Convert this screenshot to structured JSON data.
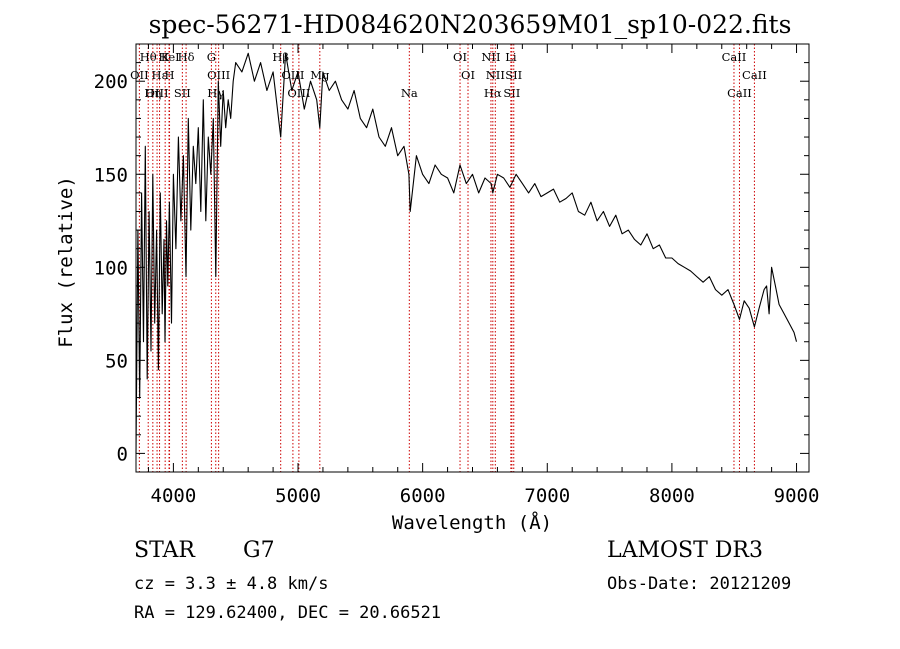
{
  "chart_data": {
    "type": "line",
    "title": "spec-56271-HD084620N203659M01_sp10-022.fits",
    "xlabel": "Wavelength (Å)",
    "ylabel": "Flux (relative)",
    "xlim": [
      3700,
      9100
    ],
    "ylim": [
      -10,
      220
    ],
    "xticks": [
      4000,
      5000,
      6000,
      7000,
      8000,
      9000
    ],
    "xtick_labels": [
      "4000",
      "5000",
      "6000",
      "7000",
      "8000",
      "9000"
    ],
    "yticks": [
      0,
      50,
      100,
      150,
      200
    ],
    "ytick_labels": [
      "0",
      "50",
      "100",
      "150",
      "200"
    ],
    "line_color": "#000000",
    "marker_color": "#cc0000",
    "series": [
      {
        "name": "flux",
        "x": [
          3700,
          3715,
          3730,
          3745,
          3760,
          3775,
          3790,
          3805,
          3820,
          3835,
          3850,
          3865,
          3880,
          3895,
          3910,
          3925,
          3933,
          3945,
          3955,
          3968,
          3985,
          4000,
          4020,
          4040,
          4060,
          4080,
          4101,
          4120,
          4140,
          4160,
          4180,
          4200,
          4220,
          4240,
          4260,
          4280,
          4300,
          4320,
          4340,
          4360,
          4380,
          4400,
          4420,
          4440,
          4460,
          4480,
          4500,
          4550,
          4600,
          4650,
          4700,
          4750,
          4800,
          4861,
          4900,
          4950,
          5000,
          5050,
          5100,
          5150,
          5175,
          5200,
          5250,
          5300,
          5350,
          5400,
          5450,
          5500,
          5550,
          5600,
          5650,
          5700,
          5750,
          5800,
          5850,
          5890,
          5900,
          5950,
          6000,
          6050,
          6100,
          6150,
          6200,
          6250,
          6300,
          6350,
          6400,
          6450,
          6500,
          6550,
          6563,
          6600,
          6650,
          6700,
          6750,
          6800,
          6850,
          6900,
          6950,
          7000,
          7050,
          7100,
          7150,
          7200,
          7250,
          7300,
          7350,
          7400,
          7450,
          7500,
          7550,
          7600,
          7650,
          7700,
          7750,
          7800,
          7850,
          7900,
          7950,
          8000,
          8050,
          8100,
          8150,
          8200,
          8250,
          8300,
          8350,
          8400,
          8450,
          8498,
          8542,
          8580,
          8620,
          8662,
          8700,
          8740,
          8760,
          8780,
          8800,
          8830,
          8860,
          8900,
          8940,
          8980,
          9000
        ],
        "y": [
          0,
          120,
          30,
          140,
          60,
          165,
          40,
          130,
          55,
          150,
          70,
          120,
          45,
          140,
          75,
          115,
          60,
          125,
          90,
          135,
          70,
          150,
          110,
          170,
          125,
          160,
          95,
          180,
          120,
          165,
          145,
          175,
          130,
          190,
          125,
          170,
          150,
          180,
          95,
          200,
          165,
          195,
          175,
          190,
          180,
          200,
          210,
          205,
          215,
          200,
          210,
          195,
          205,
          170,
          215,
          195,
          205,
          185,
          200,
          190,
          175,
          205,
          195,
          200,
          190,
          185,
          195,
          180,
          175,
          185,
          170,
          165,
          175,
          160,
          165,
          150,
          130,
          160,
          150,
          145,
          155,
          150,
          148,
          140,
          155,
          145,
          150,
          140,
          148,
          145,
          140,
          150,
          148,
          143,
          150,
          145,
          140,
          145,
          138,
          140,
          142,
          135,
          137,
          140,
          130,
          128,
          135,
          125,
          130,
          122,
          128,
          118,
          120,
          115,
          112,
          118,
          110,
          112,
          105,
          105,
          102,
          100,
          98,
          95,
          92,
          95,
          88,
          85,
          88,
          80,
          72,
          82,
          78,
          68,
          78,
          88,
          90,
          75,
          100,
          90,
          80,
          75,
          70,
          65,
          60
        ]
      }
    ],
    "line_markers": [
      {
        "label": "Hθ",
        "x": 3798
      },
      {
        "label": "OII",
        "x": 3727
      },
      {
        "label": "OIII",
        "x": 3869
      },
      {
        "label": "K",
        "x": 3934
      },
      {
        "label": "Hε",
        "x": 3889
      },
      {
        "label": "Hη",
        "x": 3835
      },
      {
        "label": "HeI",
        "x": 3965
      },
      {
        "label": "H",
        "x": 3969
      },
      {
        "label": "SII",
        "x": 4072
      },
      {
        "label": "Hδ",
        "x": 4102
      },
      {
        "label": "OIII",
        "x": 4363
      },
      {
        "label": "Hγ",
        "x": 4340
      },
      {
        "label": "G",
        "x": 4305
      },
      {
        "label": "OIII",
        "x": 4959
      },
      {
        "label": "OIII",
        "x": 5007
      },
      {
        "label": "Hβ",
        "x": 4861
      },
      {
        "label": "Mg",
        "x": 5175
      },
      {
        "label": "Na",
        "x": 5893
      },
      {
        "label": "OI",
        "x": 6300
      },
      {
        "label": "OI",
        "x": 6364
      },
      {
        "label": "Hα",
        "x": 6563
      },
      {
        "label": "NII",
        "x": 6548
      },
      {
        "label": "NII",
        "x": 6583
      },
      {
        "label": "SII",
        "x": 6716
      },
      {
        "label": "Li",
        "x": 6708
      },
      {
        "label": "SII",
        "x": 6731
      },
      {
        "label": "CaII",
        "x": 8542
      },
      {
        "label": "CaII",
        "x": 8498
      },
      {
        "label": "CaII",
        "x": 8662
      }
    ]
  },
  "info": {
    "object_type": "STAR",
    "subclass": "G7",
    "survey": "LAMOST DR3",
    "cz": "cz = 3.3 ± 4.8 km/s",
    "obs_date": "Obs-Date: 20121209",
    "coords": "RA = 129.62400, DEC =  20.66521"
  }
}
